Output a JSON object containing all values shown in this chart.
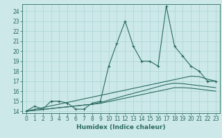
{
  "xlabel": "Humidex (Indice chaleur)",
  "background_color": "#cce8e8",
  "grid_color": "#aad4d4",
  "line_color": "#2a6b60",
  "x_values": [
    0,
    1,
    2,
    3,
    4,
    5,
    6,
    7,
    8,
    9,
    10,
    11,
    12,
    13,
    14,
    15,
    16,
    17,
    18,
    19,
    20,
    21,
    22,
    23
  ],
  "y_main": [
    14,
    14.5,
    14.2,
    15.0,
    15.0,
    14.8,
    14.2,
    14.2,
    14.8,
    15.0,
    18.5,
    20.8,
    23.0,
    20.5,
    19.0,
    19.0,
    18.5,
    24.5,
    20.5,
    19.5,
    18.5,
    18.0,
    17.0,
    17.0
  ],
  "y_line1": [
    14.0,
    14.18,
    14.35,
    14.53,
    14.7,
    14.88,
    15.05,
    15.23,
    15.4,
    15.58,
    15.75,
    15.93,
    16.1,
    16.28,
    16.45,
    16.63,
    16.8,
    16.98,
    17.15,
    17.33,
    17.5,
    17.45,
    17.2,
    17.0
  ],
  "y_line2": [
    14.0,
    14.09,
    14.17,
    14.26,
    14.35,
    14.43,
    14.52,
    14.61,
    14.69,
    14.78,
    14.96,
    15.13,
    15.3,
    15.48,
    15.65,
    15.83,
    16.0,
    16.17,
    16.35,
    16.35,
    16.3,
    16.2,
    16.1,
    16.0
  ],
  "y_line3": [
    14.0,
    14.09,
    14.17,
    14.26,
    14.35,
    14.43,
    14.52,
    14.61,
    14.69,
    14.87,
    15.1,
    15.33,
    15.56,
    15.78,
    16.0,
    16.22,
    16.45,
    16.67,
    16.8,
    16.75,
    16.65,
    16.55,
    16.45,
    16.35
  ],
  "ylim": [
    13.8,
    24.7
  ],
  "yticks": [
    14,
    15,
    16,
    17,
    18,
    19,
    20,
    21,
    22,
    23,
    24
  ],
  "xticks": [
    0,
    1,
    2,
    3,
    4,
    5,
    6,
    7,
    8,
    9,
    10,
    11,
    12,
    13,
    14,
    15,
    16,
    17,
    18,
    19,
    20,
    21,
    22,
    23
  ],
  "tick_fontsize": 5.5,
  "xlabel_fontsize": 6.5
}
